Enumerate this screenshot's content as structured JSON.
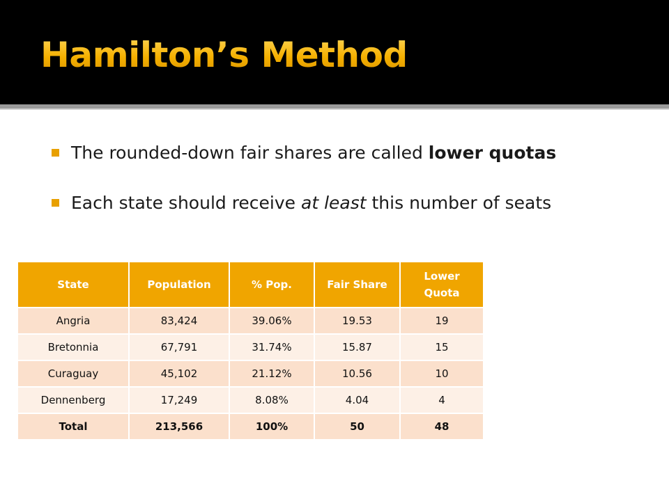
{
  "slide": {
    "title": "Hamilton’s Method",
    "bullets": [
      {
        "before": "The rounded-down fair shares are called ",
        "emph": "lower quotas",
        "after": ""
      },
      {
        "before": "Each state should receive ",
        "emph": "at least",
        "after": " this number of seats"
      }
    ]
  },
  "table": {
    "headers": [
      "State",
      "Population",
      "% Pop.",
      "Fair Share",
      "Lower\nQuota"
    ],
    "rows": [
      [
        "Angria",
        "83,424",
        "39.06%",
        "19.53",
        "19"
      ],
      [
        "Bretonnia",
        "67,791",
        "31.74%",
        "15.87",
        "15"
      ],
      [
        "Curaguay",
        "45,102",
        "21.12%",
        "10.56",
        "10"
      ],
      [
        "Dennenberg",
        "17,249",
        "8.08%",
        "4.04",
        "4"
      ],
      [
        "Total",
        "213,566",
        "100%",
        "50",
        "48"
      ]
    ]
  },
  "colors": {
    "title_gold": "#f5b400",
    "header_orange": "#f0a500",
    "row_dark": "#fbe0cc",
    "row_light": "#fdf0e6",
    "bullet_marker": "#e8a000"
  }
}
